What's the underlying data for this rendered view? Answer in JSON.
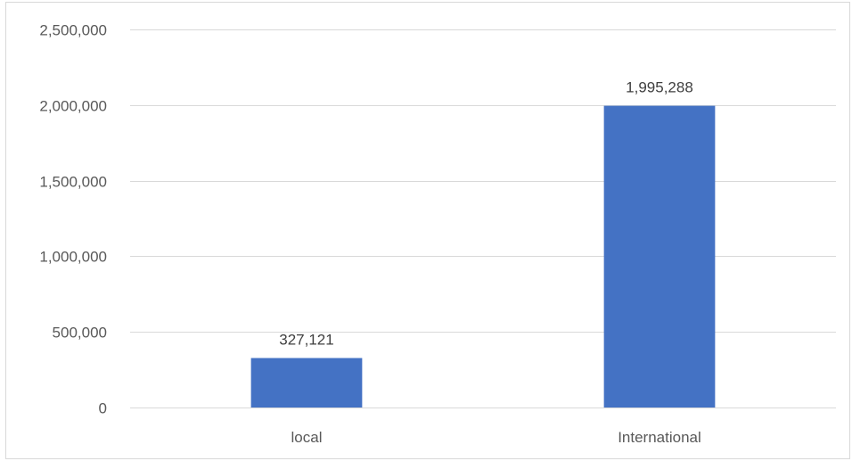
{
  "chart_data": {
    "type": "bar",
    "categories": [
      "local",
      "International"
    ],
    "values": [
      327121,
      1995288
    ],
    "value_labels": [
      "327,121",
      "1,995,288"
    ],
    "title": "",
    "xlabel": "",
    "ylabel": "",
    "ylim": [
      0,
      2500000
    ],
    "yticks": [
      0,
      500000,
      1000000,
      1500000,
      2000000,
      2500000
    ],
    "ytick_labels": [
      "0",
      "500,000",
      "1,000,000",
      "1,500,000",
      "2,000,000",
      "2,500,000"
    ],
    "grid": true,
    "legend": "none",
    "colors": {
      "bar": "#4472C4",
      "grid": "#D9D9D9",
      "text": "#595959"
    }
  }
}
